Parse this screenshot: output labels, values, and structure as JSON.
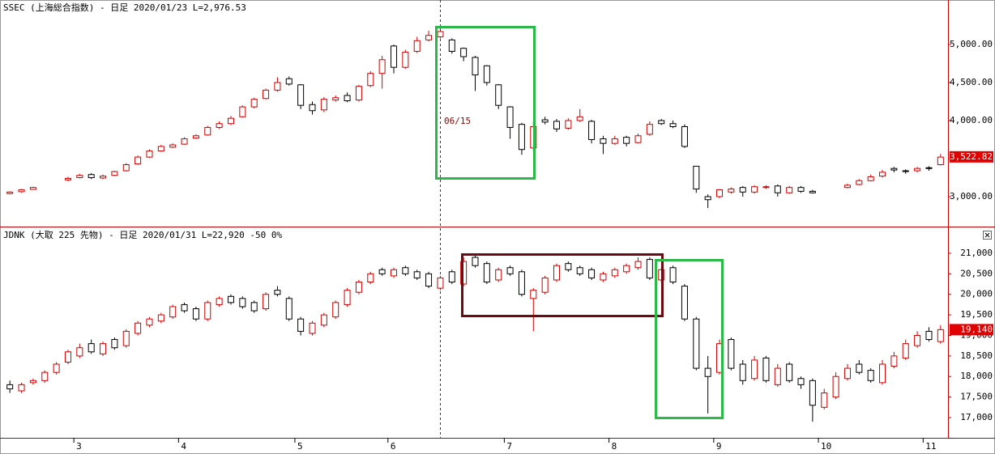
{
  "chart_data": [
    {
      "type": "candlestick",
      "title": "SSEC (上海総合指数) - 日足 2020/01/23 L=2,976.53",
      "up_color": "#d00000",
      "down_color": "#000000",
      "ylim": [
        2606,
        5585
      ],
      "yticks": [
        {
          "value": 3000,
          "label": "3,000.00"
        },
        {
          "value": 3500,
          "label": "3,500.00"
        },
        {
          "value": 4000,
          "label": "4,000.00"
        },
        {
          "value": 4500,
          "label": "4,500.00"
        },
        {
          "value": 5000,
          "label": "5,000.00"
        }
      ],
      "last_price": {
        "value": 3522.82,
        "label": "3,522.82"
      },
      "annotation": "06/15",
      "open": [
        3040,
        3065,
        3095,
        null,
        null,
        3220,
        3250,
        3290,
        3245,
        3280,
        3340,
        3430,
        3520,
        3600,
        3650,
        3690,
        3770,
        3810,
        3910,
        3960,
        4050,
        4180,
        4290,
        4400,
        4550,
        4470,
        4210,
        4140,
        4270,
        4330,
        4270,
        4460,
        4620,
        4980,
        4700,
        4910,
        5060,
        5100,
        5060,
        4950,
        4830,
        4720,
        4470,
        4180,
        3950,
        3640,
        4010,
        3990,
        3900,
        4000,
        3990,
        3760,
        3700,
        3780,
        3710,
        3820,
        4000,
        3960,
        3920,
        3400,
        3000,
        3000,
        3060,
        3120,
        3060,
        3130,
        3140,
        3050,
        3120,
        3070,
        null,
        null,
        3120,
        3160,
        3210,
        3270,
        3370,
        3340,
        3340,
        3380,
        3420
      ],
      "high": [
        3070,
        3100,
        3130,
        null,
        null,
        3260,
        3300,
        3310,
        3290,
        3340,
        3440,
        3540,
        3620,
        3680,
        3700,
        3780,
        3820,
        3930,
        3990,
        4060,
        4200,
        4300,
        4420,
        4570,
        4580,
        4480,
        4250,
        4310,
        4330,
        4370,
        4470,
        4650,
        4850,
        5000,
        4930,
        5100,
        5180,
        5250,
        5080,
        4960,
        4850,
        4730,
        4480,
        4190,
        3970,
        3990,
        4050,
        4020,
        4030,
        4150,
        4010,
        3800,
        3800,
        3800,
        3830,
        3990,
        4020,
        4000,
        3950,
        3400,
        3030,
        3100,
        3120,
        3140,
        3150,
        3150,
        3160,
        3140,
        3140,
        3090,
        null,
        null,
        3170,
        3230,
        3290,
        3350,
        3390,
        3360,
        3390,
        3400,
        3560
      ],
      "low": [
        3030,
        3050,
        3090,
        null,
        null,
        3200,
        3240,
        3230,
        3230,
        3270,
        3330,
        3420,
        3510,
        3590,
        3640,
        3680,
        3760,
        3800,
        3890,
        3940,
        4040,
        4160,
        4280,
        4380,
        4460,
        4150,
        4080,
        4110,
        4250,
        4240,
        4250,
        4440,
        4420,
        4620,
        4680,
        4890,
        5040,
        5080,
        4880,
        4780,
        4390,
        4460,
        4150,
        3760,
        3550,
        3600,
        3950,
        3850,
        3880,
        3980,
        3700,
        3560,
        3680,
        3660,
        3700,
        3800,
        3940,
        3900,
        3640,
        3050,
        2850,
        2980,
        3040,
        3000,
        3040,
        3100,
        3000,
        3040,
        3050,
        3040,
        null,
        null,
        3110,
        3150,
        3200,
        3250,
        3320,
        3300,
        3320,
        3340,
        3410
      ],
      "close": [
        3060,
        3090,
        3120,
        null,
        null,
        3240,
        3280,
        3250,
        3270,
        3330,
        3420,
        3520,
        3600,
        3660,
        3680,
        3760,
        3800,
        3910,
        3960,
        4030,
        4180,
        4280,
        4400,
        4500,
        4480,
        4200,
        4130,
        4280,
        4300,
        4260,
        4450,
        4620,
        4800,
        4700,
        4900,
        5050,
        5120,
        5170,
        4910,
        4840,
        4600,
        4500,
        4200,
        3910,
        3620,
        3920,
        3980,
        3890,
        4000,
        4050,
        3750,
        3700,
        3760,
        3700,
        3800,
        3950,
        3960,
        3920,
        3660,
        3100,
        2960,
        3090,
        3100,
        3060,
        3130,
        3130,
        3050,
        3120,
        3070,
        3050,
        null,
        null,
        3150,
        3210,
        3260,
        3320,
        3350,
        3330,
        3370,
        3370,
        3520
      ]
    },
    {
      "type": "candlestick",
      "title": "JDNK (大取 225 先物) - 日足 2020/01/31 L=22,920 -50 0%",
      "up_color": "#d00000",
      "down_color": "#000000",
      "ylim": [
        16527,
        21630
      ],
      "yticks": [
        {
          "value": 17000,
          "label": "17,000"
        },
        {
          "value": 17500,
          "label": "17,500"
        },
        {
          "value": 18000,
          "label": "18,000"
        },
        {
          "value": 18500,
          "label": "18,500"
        },
        {
          "value": 19000,
          "label": "19,000"
        },
        {
          "value": 19500,
          "label": "19,500"
        },
        {
          "value": 20000,
          "label": "20,000"
        },
        {
          "value": 20500,
          "label": "20,500"
        },
        {
          "value": 21000,
          "label": "21,000"
        }
      ],
      "last_price": {
        "value": 19140,
        "label": "19,140"
      },
      "categories": [
        null,
        null,
        null,
        null,
        null,
        null,
        "3",
        null,
        null,
        null,
        null,
        null,
        null,
        null,
        null,
        "4",
        null,
        null,
        null,
        null,
        null,
        null,
        null,
        null,
        null,
        "5",
        null,
        null,
        null,
        null,
        null,
        null,
        null,
        "6",
        null,
        null,
        null,
        null,
        null,
        null,
        null,
        null,
        null,
        "7",
        null,
        null,
        null,
        null,
        null,
        null,
        null,
        null,
        "8",
        null,
        null,
        null,
        null,
        null,
        null,
        null,
        null,
        "9",
        null,
        null,
        null,
        null,
        null,
        null,
        null,
        null,
        "10",
        null,
        null,
        null,
        null,
        null,
        null,
        null,
        null,
        "11",
        null
      ],
      "open": [
        17800,
        17650,
        17850,
        17900,
        18100,
        18350,
        18500,
        18800,
        18550,
        18900,
        18750,
        19050,
        19250,
        19350,
        19450,
        19750,
        19650,
        19400,
        19750,
        19950,
        19900,
        19800,
        19650,
        20100,
        19900,
        19400,
        19050,
        19250,
        19450,
        19750,
        20050,
        20300,
        20600,
        20450,
        20650,
        20550,
        20500,
        20150,
        20550,
        20250,
        20900,
        20750,
        20350,
        20650,
        20550,
        19900,
        20050,
        20350,
        20750,
        20650,
        20600,
        20350,
        20450,
        20550,
        20650,
        20850,
        20350,
        20650,
        20200,
        19400,
        18200,
        18100,
        18900,
        18300,
        17950,
        18450,
        17800,
        18300,
        17950,
        17900,
        17250,
        17500,
        17950,
        18300,
        18150,
        17850,
        18250,
        18450,
        18750,
        19100,
        18850
      ],
      "high": [
        17900,
        17850,
        17950,
        18150,
        18350,
        18650,
        18800,
        18900,
        18850,
        18950,
        19150,
        19350,
        19450,
        19550,
        19750,
        19800,
        19700,
        19850,
        19950,
        20000,
        19950,
        19850,
        20050,
        20200,
        19950,
        19450,
        19350,
        19550,
        19850,
        20150,
        20350,
        20550,
        20650,
        20650,
        20700,
        20600,
        20550,
        20450,
        20600,
        20900,
        20950,
        20800,
        20650,
        20700,
        20600,
        20150,
        20450,
        20750,
        20800,
        20700,
        20650,
        20550,
        20650,
        20750,
        20900,
        20900,
        20650,
        20700,
        20250,
        19450,
        18500,
        18900,
        18950,
        18400,
        18500,
        18500,
        18300,
        18350,
        18000,
        17950,
        17700,
        18100,
        18300,
        18400,
        18200,
        18400,
        18600,
        18900,
        19100,
        19200,
        19250
      ],
      "low": [
        17600,
        17600,
        17800,
        17850,
        18050,
        18300,
        18450,
        18550,
        18500,
        18650,
        18700,
        19000,
        19200,
        19300,
        19400,
        19550,
        19350,
        19350,
        19700,
        19750,
        19650,
        19550,
        19600,
        19950,
        19350,
        19000,
        19000,
        19200,
        19400,
        19700,
        20000,
        20250,
        20450,
        20400,
        20450,
        20350,
        20150,
        20100,
        20250,
        20200,
        20650,
        20250,
        20300,
        20450,
        19950,
        19100,
        20000,
        20300,
        20550,
        20450,
        20350,
        20300,
        20400,
        20500,
        20600,
        20350,
        20300,
        20250,
        19350,
        18150,
        17100,
        18050,
        18150,
        17800,
        17900,
        17850,
        17750,
        17850,
        17700,
        16900,
        17200,
        17450,
        17900,
        18050,
        17850,
        17800,
        18200,
        18400,
        18700,
        18850,
        18800
      ],
      "close": [
        17700,
        17800,
        17900,
        18100,
        18300,
        18600,
        18700,
        18600,
        18800,
        18700,
        19100,
        19300,
        19400,
        19500,
        19700,
        19600,
        19400,
        19800,
        19900,
        19800,
        19700,
        19600,
        20000,
        20000,
        19400,
        19100,
        19300,
        19500,
        19800,
        20100,
        20300,
        20500,
        20500,
        20600,
        20500,
        20400,
        20200,
        20400,
        20300,
        20800,
        20700,
        20300,
        20600,
        20500,
        20000,
        20100,
        20400,
        20700,
        20600,
        20500,
        20400,
        20500,
        20600,
        20700,
        20800,
        20400,
        20600,
        20300,
        19400,
        18200,
        18000,
        18800,
        18200,
        17900,
        18400,
        17900,
        18200,
        17900,
        17800,
        17300,
        17600,
        18000,
        18200,
        18100,
        17900,
        18300,
        18500,
        18800,
        19000,
        18900,
        19140
      ]
    }
  ]
}
